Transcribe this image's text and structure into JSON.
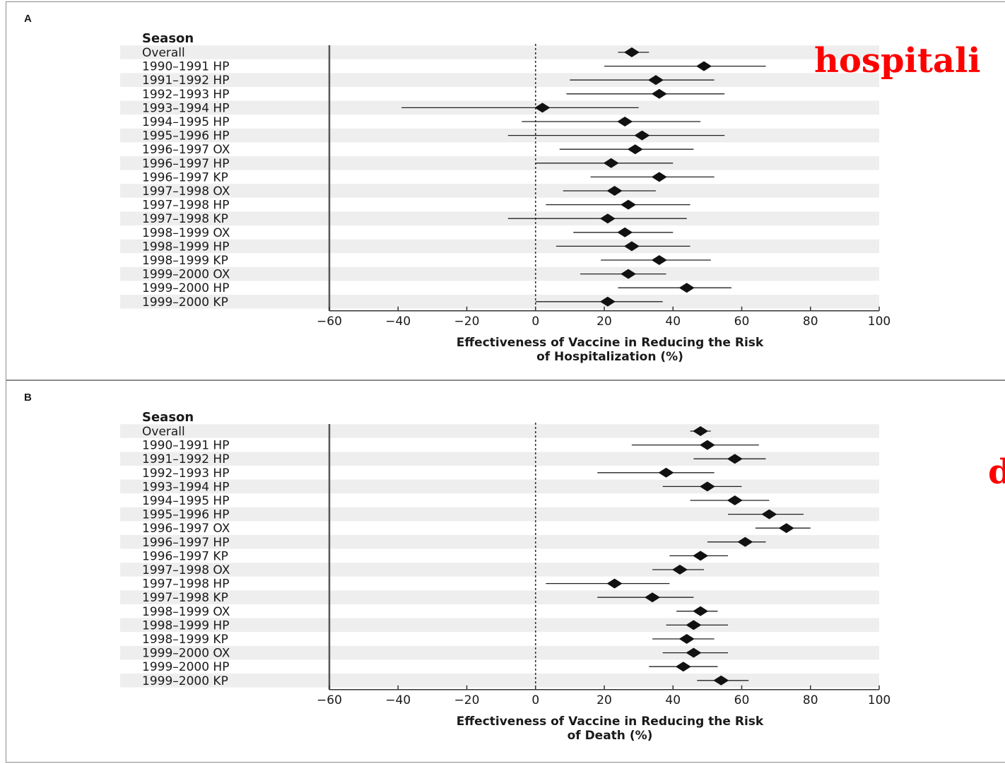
{
  "overlay_labels": {
    "a": "hospitali",
    "b": "d"
  },
  "chart_data": [
    {
      "type": "forest",
      "panel_label": "A",
      "row_header": "Season",
      "xlabel_line1": "Effectiveness of Vaccine in Reducing the Risk",
      "xlabel_line2": "of Hospitalization (%)",
      "xlim": [
        -60,
        100
      ],
      "xticks": [
        -60,
        -40,
        -20,
        0,
        20,
        40,
        60,
        80,
        100
      ],
      "reference_line": 0,
      "grid": false,
      "rows": [
        {
          "label": "Overall",
          "est": 28,
          "lo": 24,
          "hi": 33
        },
        {
          "label": "1990–1991 HP",
          "est": 49,
          "lo": 20,
          "hi": 67
        },
        {
          "label": "1991–1992 HP",
          "est": 35,
          "lo": 10,
          "hi": 52
        },
        {
          "label": "1992–1993 HP",
          "est": 36,
          "lo": 9,
          "hi": 55
        },
        {
          "label": "1993–1994 HP",
          "est": 2,
          "lo": -39,
          "hi": 30
        },
        {
          "label": "1994–1995 HP",
          "est": 26,
          "lo": -4,
          "hi": 48
        },
        {
          "label": "1995–1996 HP",
          "est": 31,
          "lo": -8,
          "hi": 55
        },
        {
          "label": "1996–1997 OX",
          "est": 29,
          "lo": 7,
          "hi": 46
        },
        {
          "label": "1996–1997 HP",
          "est": 22,
          "lo": 0,
          "hi": 40
        },
        {
          "label": "1996–1997 KP",
          "est": 36,
          "lo": 16,
          "hi": 52
        },
        {
          "label": "1997–1998 OX",
          "est": 23,
          "lo": 8,
          "hi": 35
        },
        {
          "label": "1997–1998 HP",
          "est": 27,
          "lo": 3,
          "hi": 45
        },
        {
          "label": "1997–1998 KP",
          "est": 21,
          "lo": -8,
          "hi": 44
        },
        {
          "label": "1998–1999 OX",
          "est": 26,
          "lo": 11,
          "hi": 40
        },
        {
          "label": "1998–1999 HP",
          "est": 28,
          "lo": 6,
          "hi": 45
        },
        {
          "label": "1998–1999 KP",
          "est": 36,
          "lo": 19,
          "hi": 51
        },
        {
          "label": "1999–2000 OX",
          "est": 27,
          "lo": 13,
          "hi": 38
        },
        {
          "label": "1999–2000 HP",
          "est": 44,
          "lo": 24,
          "hi": 57
        },
        {
          "label": "1999–2000 KP",
          "est": 21,
          "lo": 0,
          "hi": 37
        }
      ]
    },
    {
      "type": "forest",
      "panel_label": "B",
      "row_header": "Season",
      "xlabel_line1": "Effectiveness of Vaccine in Reducing the Risk",
      "xlabel_line2": "of Death (%)",
      "xlim": [
        -60,
        100
      ],
      "xticks": [
        -60,
        -40,
        -20,
        0,
        20,
        40,
        60,
        80,
        100
      ],
      "reference_line": 0,
      "grid": false,
      "rows": [
        {
          "label": "Overall",
          "est": 48,
          "lo": 45,
          "hi": 51
        },
        {
          "label": "1990–1991 HP",
          "est": 50,
          "lo": 28,
          "hi": 65
        },
        {
          "label": "1991–1992 HP",
          "est": 58,
          "lo": 46,
          "hi": 67
        },
        {
          "label": "1992–1993 HP",
          "est": 38,
          "lo": 18,
          "hi": 52
        },
        {
          "label": "1993–1994 HP",
          "est": 50,
          "lo": 37,
          "hi": 60
        },
        {
          "label": "1994–1995 HP",
          "est": 58,
          "lo": 45,
          "hi": 68
        },
        {
          "label": "1995–1996 HP",
          "est": 68,
          "lo": 56,
          "hi": 78
        },
        {
          "label": "1996–1997 OX",
          "est": 73,
          "lo": 64,
          "hi": 80
        },
        {
          "label": "1996–1997 HP",
          "est": 61,
          "lo": 50,
          "hi": 67
        },
        {
          "label": "1996–1997 KP",
          "est": 48,
          "lo": 39,
          "hi": 56
        },
        {
          "label": "1997–1998 OX",
          "est": 42,
          "lo": 34,
          "hi": 49
        },
        {
          "label": "1997–1998 HP",
          "est": 23,
          "lo": 3,
          "hi": 39
        },
        {
          "label": "1997–1998 KP",
          "est": 34,
          "lo": 18,
          "hi": 46
        },
        {
          "label": "1998–1999 OX",
          "est": 48,
          "lo": 41,
          "hi": 53
        },
        {
          "label": "1998–1999 HP",
          "est": 46,
          "lo": 38,
          "hi": 56
        },
        {
          "label": "1998–1999 KP",
          "est": 44,
          "lo": 34,
          "hi": 52
        },
        {
          "label": "1999–2000 OX",
          "est": 46,
          "lo": 37,
          "hi": 56
        },
        {
          "label": "1999–2000 HP",
          "est": 43,
          "lo": 33,
          "hi": 53
        },
        {
          "label": "1999–2000 KP",
          "est": 54,
          "lo": 47,
          "hi": 62
        }
      ]
    }
  ]
}
